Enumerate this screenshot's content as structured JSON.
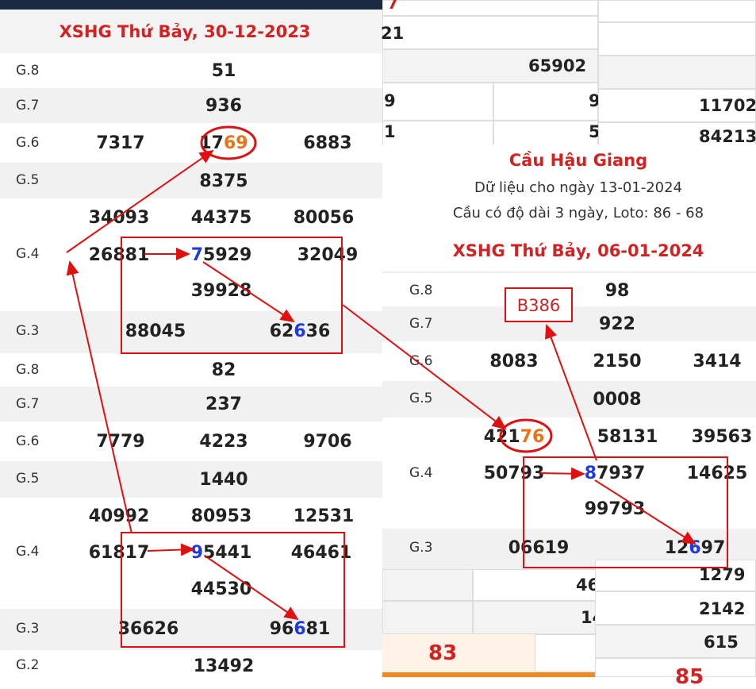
{
  "colors": {
    "red": "#d32222",
    "orange": "#e8731a",
    "blue": "#1f3be0",
    "navy": "#1a2940"
  },
  "left_panel": {
    "title": "XSHG Thứ Bảy, 30-12-2023",
    "rows": [
      {
        "label": "G.8",
        "values": [
          "51"
        ]
      },
      {
        "label": "G.7",
        "values": [
          "936"
        ]
      },
      {
        "label": "G.6",
        "values": [
          "7317",
          "17",
          "69",
          "6883"
        ]
      },
      {
        "label": "G.5",
        "values": [
          "8375"
        ]
      },
      {
        "label": "G.4",
        "values": [
          "34093",
          "44375",
          "80056",
          "26881",
          "7",
          "5929",
          "32049",
          "39928"
        ]
      },
      {
        "label": "G.3",
        "values": [
          "88045",
          "62",
          "6",
          "36"
        ]
      }
    ]
  },
  "left_panel_2": {
    "rows": [
      {
        "label": "G.8",
        "values": [
          "82"
        ]
      },
      {
        "label": "G.7",
        "values": [
          "237"
        ]
      },
      {
        "label": "G.6",
        "values": [
          "7779",
          "4223",
          "9706"
        ]
      },
      {
        "label": "G.5",
        "values": [
          "1440"
        ]
      },
      {
        "label": "G.4",
        "values": [
          "40992",
          "80953",
          "12531",
          "61817",
          "9",
          "5441",
          "46461",
          "44530"
        ]
      },
      {
        "label": "G.3",
        "values": [
          "36626",
          "96",
          "6",
          "81"
        ]
      },
      {
        "label": "G.2",
        "values": [
          "13492"
        ]
      }
    ]
  },
  "bg_fragments": {
    "top_mid": [
      "21",
      "65902",
      "9",
      "9",
      "1",
      "5"
    ],
    "top_right": [
      "11702",
      "84213"
    ],
    "bottom_mid": [
      "46",
      "14",
      "83"
    ],
    "bottom_right": [
      "1279",
      "2142",
      "615",
      "85"
    ],
    "top_red": "7"
  },
  "right_panel": {
    "heading": "Cầu Hậu Giang",
    "line1": "Dữ liệu cho ngày 13-01-2024",
    "line2": "Cầu có độ dài 3 ngày, Loto: 86 - 68",
    "title": "XSHG Thứ Bảy, 06-01-2024",
    "annotation": "B386",
    "rows": [
      {
        "label": "G.8",
        "values": [
          "98"
        ]
      },
      {
        "label": "G.7",
        "values": [
          "922"
        ]
      },
      {
        "label": "G.6",
        "values": [
          "8083",
          "2150",
          "3414"
        ]
      },
      {
        "label": "G.5",
        "values": [
          "0008"
        ]
      },
      {
        "label": "G.4",
        "values": [
          "421",
          "76",
          "58131",
          "39563",
          "50793",
          "8",
          "7937",
          "14625",
          "99793"
        ]
      },
      {
        "label": "G.3",
        "values": [
          "06619",
          "12",
          "6",
          "97"
        ]
      }
    ]
  }
}
